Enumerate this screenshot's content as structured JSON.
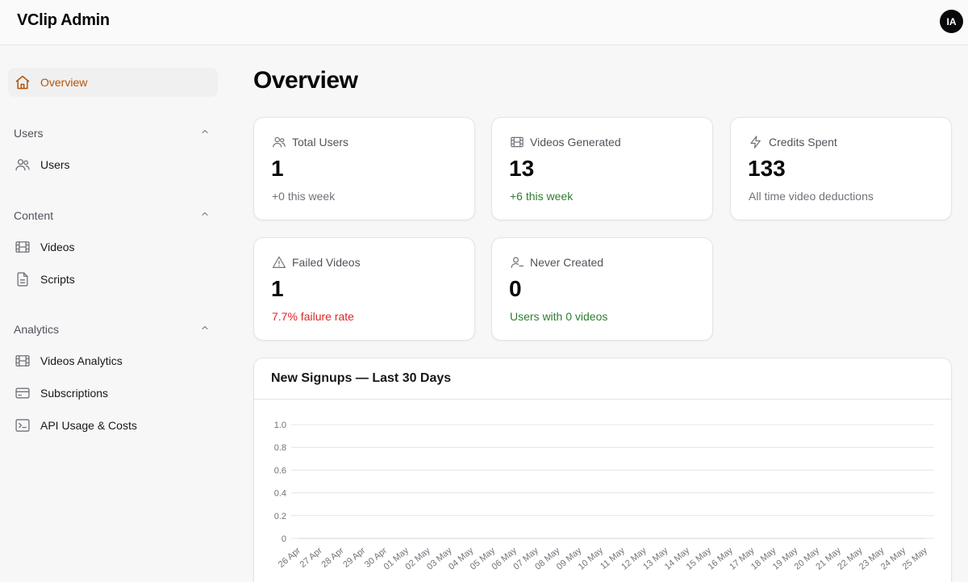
{
  "app": {
    "title": "VClip Admin",
    "avatar_initials": "IA"
  },
  "sidebar": {
    "overview": {
      "label": "Overview",
      "icon": "home-icon"
    },
    "groups": [
      {
        "label": "Users",
        "items": [
          {
            "label": "Users",
            "icon": "users-icon"
          }
        ]
      },
      {
        "label": "Content",
        "items": [
          {
            "label": "Videos",
            "icon": "film-icon"
          },
          {
            "label": "Scripts",
            "icon": "file-icon"
          }
        ]
      },
      {
        "label": "Analytics",
        "items": [
          {
            "label": "Videos Analytics",
            "icon": "film-icon"
          },
          {
            "label": "Subscriptions",
            "icon": "credit-card-icon"
          },
          {
            "label": "API Usage & Costs",
            "icon": "terminal-icon"
          }
        ]
      }
    ]
  },
  "main": {
    "title": "Overview",
    "cards": [
      {
        "title": "Total Users",
        "value": "1",
        "sub": "+0 this week",
        "icon": "users-icon",
        "tone": "muted"
      },
      {
        "title": "Videos Generated",
        "value": "13",
        "sub": "+6 this week",
        "icon": "film-icon",
        "tone": "green"
      },
      {
        "title": "Credits Spent",
        "value": "133",
        "sub": "All time video deductions",
        "icon": "zap-icon",
        "tone": "muted"
      },
      {
        "title": "Failed Videos",
        "value": "1",
        "sub": "7.7% failure rate",
        "icon": "alert-triangle-icon",
        "tone": "red"
      },
      {
        "title": "Never Created",
        "value": "0",
        "sub": "Users with 0 videos",
        "icon": "user-minus-icon",
        "tone": "green"
      }
    ]
  },
  "colors": {
    "accent": "#b45309",
    "green": "#2e7d32",
    "red": "#dc2626"
  },
  "chart_data": {
    "type": "line",
    "title": "New Signups — Last 30 Days",
    "x": [
      "26 Apr",
      "27 Apr",
      "28 Apr",
      "29 Apr",
      "30 Apr",
      "01 May",
      "02 May",
      "03 May",
      "04 May",
      "05 May",
      "06 May",
      "07 May",
      "08 May",
      "09 May",
      "10 May",
      "11 May",
      "12 May",
      "13 May",
      "14 May",
      "15 May",
      "16 May",
      "17 May",
      "18 May",
      "19 May",
      "20 May",
      "21 May",
      "22 May",
      "23 May",
      "24 May",
      "25 May"
    ],
    "series": [
      {
        "values": [
          0,
          0,
          0,
          0,
          0,
          0,
          0,
          0,
          0,
          0,
          0,
          0,
          0,
          0,
          0,
          0,
          0,
          0,
          0,
          0,
          0,
          0,
          0,
          0,
          0,
          0,
          0,
          0,
          0,
          0
        ]
      }
    ],
    "yticks": [
      "1.0",
      "0.8",
      "0.6",
      "0.4",
      "0.2",
      "0"
    ],
    "ylim": [
      0,
      1
    ],
    "grid": true
  }
}
